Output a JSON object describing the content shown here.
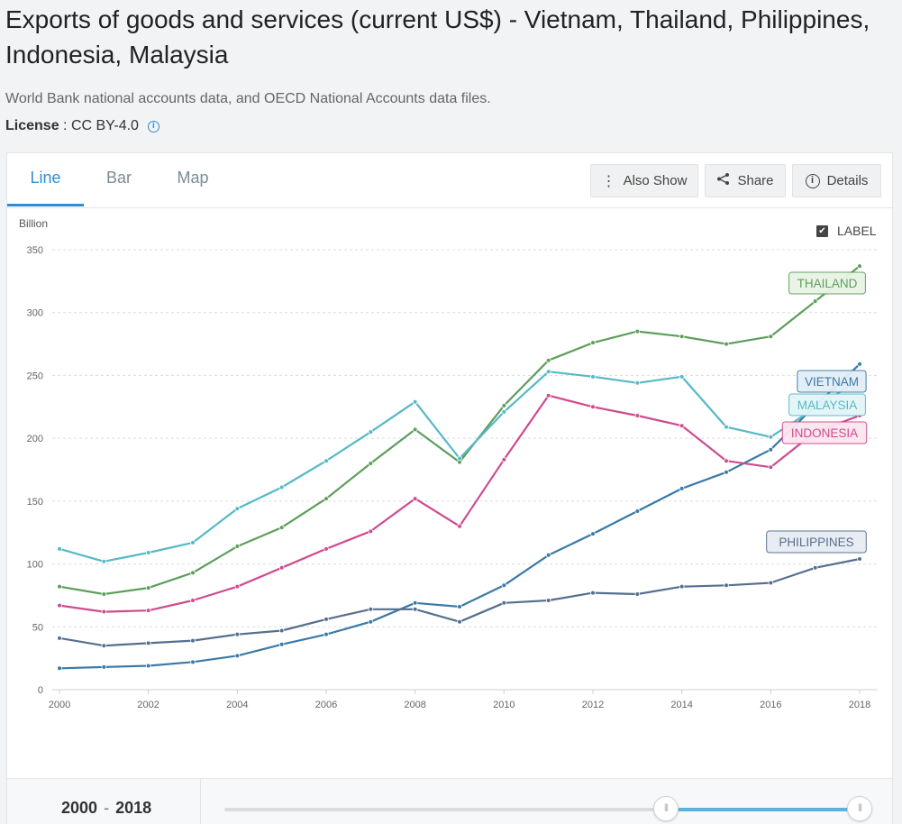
{
  "page": {
    "title": "Exports of goods and services (current US$) - Vietnam, Thailand, Philippines, Indonesia, Malaysia",
    "source": "World Bank national accounts data, and OECD National Accounts data files.",
    "license_label": "License",
    "license_sep": " : ",
    "license_value": "CC BY-4.0"
  },
  "tabs": [
    {
      "label": "Line",
      "active": true
    },
    {
      "label": "Bar",
      "active": false
    },
    {
      "label": "Map",
      "active": false
    }
  ],
  "toolbar": {
    "also_show": "Also Show",
    "share": "Share",
    "details": "Details"
  },
  "label_toggle": {
    "text": "LABEL",
    "checked": true
  },
  "footer": {
    "range_start": "2000",
    "range_sep": "-",
    "range_end": "2018"
  },
  "colors": {
    "vietnam": "#3a7aa6",
    "thailand": "#5d9e5b",
    "philippines": "#566f8f",
    "indonesia": "#cf4a8e",
    "malaysia": "#55b9c6",
    "accent": "#2b8fd6"
  },
  "chart_data": {
    "type": "line",
    "ylabel": "Billion",
    "ylim": [
      0,
      350
    ],
    "yticks": [
      0,
      50,
      100,
      150,
      200,
      250,
      300,
      350
    ],
    "xticks": [
      2000,
      2002,
      2004,
      2006,
      2008,
      2010,
      2012,
      2014,
      2016,
      2018
    ],
    "x": [
      2000,
      2001,
      2002,
      2003,
      2004,
      2005,
      2006,
      2007,
      2008,
      2009,
      2010,
      2011,
      2012,
      2013,
      2014,
      2015,
      2016,
      2017,
      2018
    ],
    "grid": true,
    "series": [
      {
        "name": "THAILAND",
        "color": "#5d9e5b",
        "label_bg": "#e8f4e6",
        "values": [
          82,
          76,
          81,
          93,
          114,
          129,
          152,
          180,
          207,
          181,
          226,
          262,
          276,
          285,
          281,
          275,
          281,
          309,
          337
        ]
      },
      {
        "name": "VIETNAM",
        "color": "#3a7aa6",
        "label_bg": "#e3eef7",
        "values": [
          17,
          18,
          19,
          22,
          27,
          36,
          44,
          54,
          69,
          66,
          83,
          107,
          124,
          142,
          160,
          173,
          191,
          226,
          259
        ]
      },
      {
        "name": "MALAYSIA",
        "color": "#55b9c6",
        "label_bg": "#e4f5f7",
        "values": [
          112,
          102,
          109,
          117,
          144,
          161,
          182,
          205,
          229,
          184,
          221,
          253,
          249,
          244,
          249,
          209,
          201,
          224,
          247
        ]
      },
      {
        "name": "INDONESIA",
        "color": "#cf4a8e",
        "label_bg": "#fbe6f0",
        "values": [
          67,
          62,
          63,
          71,
          82,
          97,
          112,
          126,
          152,
          130,
          183,
          234,
          225,
          218,
          210,
          182,
          177,
          205,
          218
        ]
      },
      {
        "name": "PHILIPPINES",
        "color": "#566f8f",
        "label_bg": "#e7ebf3",
        "values": [
          41,
          35,
          37,
          39,
          44,
          47,
          56,
          64,
          64,
          54,
          69,
          71,
          77,
          76,
          82,
          83,
          85,
          97,
          104
        ]
      }
    ]
  }
}
